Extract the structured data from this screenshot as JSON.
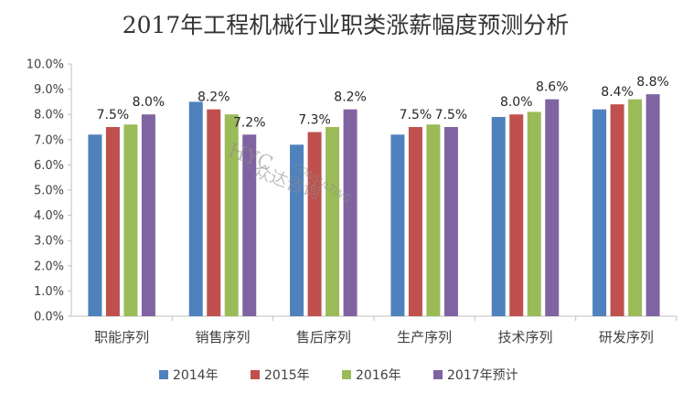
{
  "chart_data": {
    "type": "bar",
    "title": "2017年工程机械行业职类涨薪幅度预测分析",
    "categories": [
      "职能序列",
      "销售序列",
      "售后序列",
      "生产序列",
      "技术序列",
      "研发序列"
    ],
    "series": [
      {
        "name": "2014年",
        "color": "#4f81bd",
        "values": [
          7.2,
          8.5,
          6.8,
          7.2,
          7.9,
          8.2
        ]
      },
      {
        "name": "2015年",
        "color": "#c0504d",
        "values": [
          7.5,
          8.2,
          7.3,
          7.5,
          8.0,
          8.4
        ]
      },
      {
        "name": "2016年",
        "color": "#9bbb59",
        "values": [
          7.6,
          8.0,
          7.5,
          7.6,
          8.1,
          8.6
        ]
      },
      {
        "name": "2017年预计",
        "color": "#8064a2",
        "values": [
          8.0,
          7.2,
          8.2,
          7.5,
          8.6,
          8.8
        ]
      }
    ],
    "data_labels": [
      {
        "category": "职能序列",
        "series": "2015年",
        "text": "7.5%"
      },
      {
        "category": "职能序列",
        "series": "2017年预计",
        "text": "8.0%"
      },
      {
        "category": "销售序列",
        "series": "2015年",
        "text": "8.2%"
      },
      {
        "category": "销售序列",
        "series": "2017年预计",
        "text": "7.2%"
      },
      {
        "category": "售后序列",
        "series": "2015年",
        "text": "7.3%"
      },
      {
        "category": "售后序列",
        "series": "2017年预计",
        "text": "8.2%"
      },
      {
        "category": "生产序列",
        "series": "2015年",
        "text": "7.5%"
      },
      {
        "category": "生产序列",
        "series": "2017年预计",
        "text": "7.5%"
      },
      {
        "category": "技术序列",
        "series": "2015年",
        "text": "8.0%"
      },
      {
        "category": "技术序列",
        "series": "2017年预计",
        "text": "8.6%"
      },
      {
        "category": "研发序列",
        "series": "2015年",
        "text": "8.4%"
      },
      {
        "category": "研发序列",
        "series": "2017年预计",
        "text": "8.8%"
      }
    ],
    "y_ticks": [
      "0.0%",
      "1.0%",
      "2.0%",
      "3.0%",
      "4.0%",
      "5.0%",
      "6.0%",
      "7.0%",
      "8.0%",
      "9.0%",
      "10.0%"
    ],
    "ylim": [
      0,
      10
    ],
    "y_unit": "%",
    "grid": false,
    "legend_position": "bottom",
    "xlabel": "",
    "ylabel": ""
  },
  "watermark": {
    "logo_text": "HYC",
    "latin_text": "CONSULTING",
    "chinese_text": "众达咨询"
  }
}
